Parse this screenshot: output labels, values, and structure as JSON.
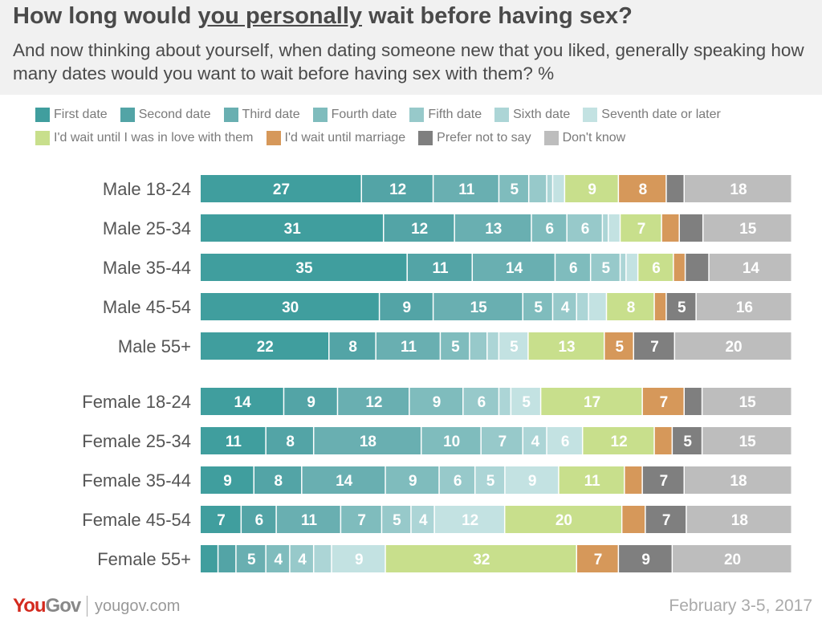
{
  "header": {
    "title_pre": "How long would ",
    "title_emph": "you personally",
    "title_post": " wait before having sex?",
    "subtitle": "And now thinking about yourself, when dating someone new that you liked, generally speaking how many dates would you want to wait before having sex with them? %"
  },
  "chart_data": {
    "type": "bar",
    "orientation": "horizontal",
    "stacked": true,
    "legend_placement": "top",
    "series": [
      {
        "name": "First date",
        "color": "#409e9e"
      },
      {
        "name": "Second date",
        "color": "#53a4a6"
      },
      {
        "name": "Third date",
        "color": "#69afb1"
      },
      {
        "name": "Fourth date",
        "color": "#7fbcbd"
      },
      {
        "name": "Fifth date",
        "color": "#97c9ca"
      },
      {
        "name": "Sixth date",
        "color": "#acd5d6"
      },
      {
        "name": "Seventh date or later",
        "color": "#c3e2e2"
      },
      {
        "name": "I'd wait until I was in love with them",
        "color": "#c8df8c"
      },
      {
        "name": "I'd wait until marriage",
        "color": "#d6985a"
      },
      {
        "name": "Prefer not to say",
        "color": "#7f7f7f"
      },
      {
        "name": "Don't know",
        "color": "#bdbdbd"
      }
    ],
    "groups": [
      {
        "rows": [
          {
            "category": "Male 18-24",
            "values": [
              27,
              12,
              11,
              5,
              3,
              1,
              2,
              9,
              8,
              3,
              18
            ],
            "labels": [
              "27",
              "12",
              "11",
              "5",
              "",
              "",
              "",
              "9",
              "8",
              "",
              "18"
            ]
          },
          {
            "category": "Male 25-34",
            "values": [
              31,
              12,
              13,
              6,
              6,
              1,
              2,
              7,
              3,
              4,
              15
            ],
            "labels": [
              "31",
              "12",
              "13",
              "6",
              "6",
              "",
              "",
              "7",
              "",
              "",
              "15"
            ]
          },
          {
            "category": "Male 35-44",
            "values": [
              35,
              11,
              14,
              6,
              5,
              1,
              2,
              6,
              2,
              4,
              14
            ],
            "labels": [
              "35",
              "11",
              "14",
              "6",
              "5",
              "",
              "",
              "6",
              "",
              "",
              "14"
            ]
          },
          {
            "category": "Male 45-54",
            "values": [
              30,
              9,
              15,
              5,
              4,
              2,
              3,
              8,
              2,
              5,
              16
            ],
            "labels": [
              "30",
              "9",
              "15",
              "5",
              "4",
              "",
              "",
              "8",
              "",
              "5",
              "16"
            ]
          },
          {
            "category": "Male 55+",
            "values": [
              22,
              8,
              11,
              5,
              3,
              2,
              5,
              13,
              5,
              7,
              20
            ],
            "labels": [
              "22",
              "8",
              "11",
              "5",
              "",
              "",
              "5",
              "13",
              "5",
              "7",
              "20"
            ]
          }
        ]
      },
      {
        "rows": [
          {
            "category": "Female 18-24",
            "values": [
              14,
              9,
              12,
              9,
              6,
              2,
              5,
              17,
              7,
              3,
              15
            ],
            "labels": [
              "14",
              "9",
              "12",
              "9",
              "6",
              "",
              "5",
              "17",
              "7",
              "",
              "15"
            ]
          },
          {
            "category": "Female 25-34",
            "values": [
              11,
              8,
              18,
              10,
              7,
              4,
              6,
              12,
              3,
              5,
              15
            ],
            "labels": [
              "11",
              "8",
              "18",
              "10",
              "7",
              "4",
              "6",
              "12",
              "",
              "5",
              "15"
            ]
          },
          {
            "category": "Female 35-44",
            "values": [
              9,
              8,
              14,
              9,
              6,
              5,
              9,
              11,
              3,
              7,
              18
            ],
            "labels": [
              "9",
              "8",
              "14",
              "9",
              "6",
              "5",
              "9",
              "11",
              "",
              "7",
              "18"
            ]
          },
          {
            "category": "Female 45-54",
            "values": [
              7,
              6,
              11,
              7,
              5,
              4,
              12,
              20,
              4,
              7,
              18
            ],
            "labels": [
              "7",
              "6",
              "11",
              "7",
              "5",
              "4",
              "12",
              "20",
              "",
              "7",
              "18"
            ]
          },
          {
            "category": "Female 55+",
            "values": [
              3,
              3,
              5,
              4,
              4,
              3,
              9,
              32,
              7,
              9,
              20
            ],
            "labels": [
              "",
              "",
              "5",
              "4",
              "4",
              "",
              "9",
              "32",
              "7",
              "9",
              "20"
            ]
          }
        ]
      }
    ]
  },
  "footer": {
    "brand_you": "You",
    "brand_gov": "Gov",
    "url": "yougov.com",
    "date": "February 3-5, 2017"
  }
}
